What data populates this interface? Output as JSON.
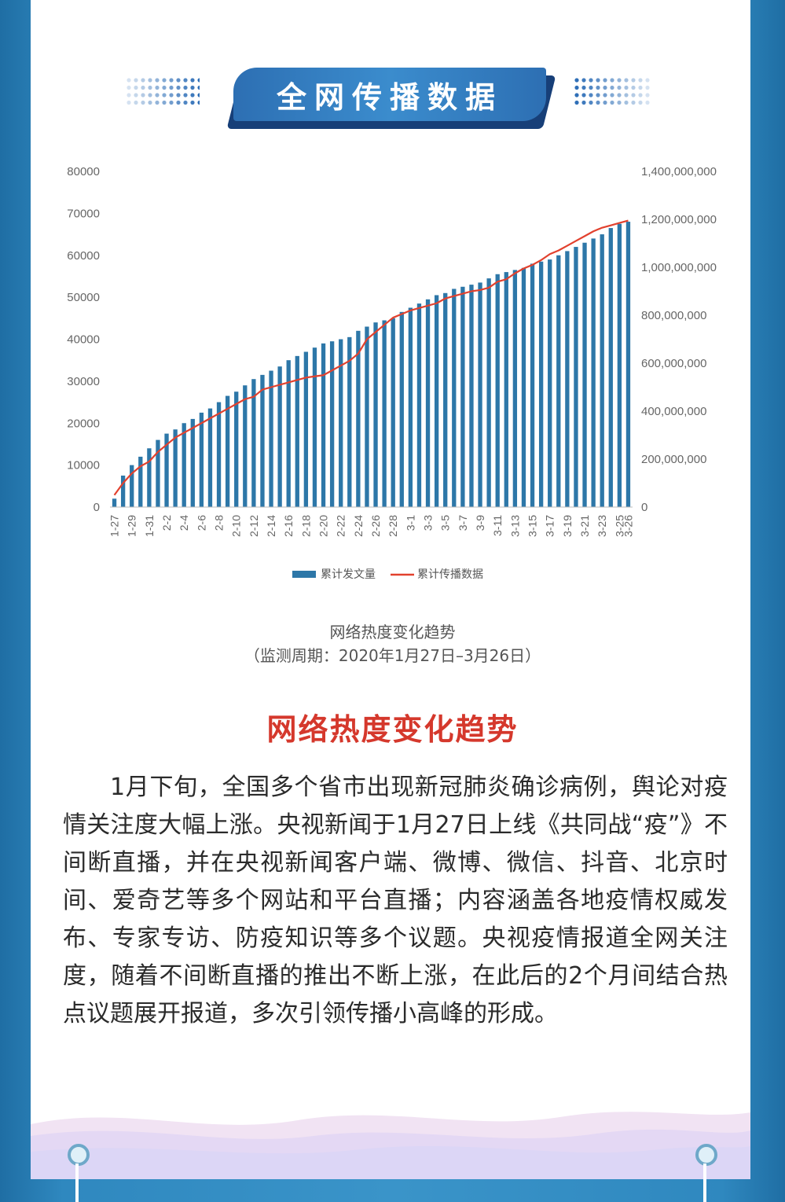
{
  "header": {
    "title": "全网传播数据"
  },
  "chart_data": {
    "type": "bar+line",
    "categories": [
      "1-27",
      "1-28",
      "1-29",
      "1-30",
      "1-31",
      "2-1",
      "2-2",
      "2-3",
      "2-4",
      "2-5",
      "2-6",
      "2-7",
      "2-8",
      "2-9",
      "2-10",
      "2-11",
      "2-12",
      "2-13",
      "2-14",
      "2-15",
      "2-16",
      "2-17",
      "2-18",
      "2-19",
      "2-20",
      "2-21",
      "2-22",
      "2-23",
      "2-24",
      "2-25",
      "2-26",
      "2-27",
      "2-28",
      "2-29",
      "3-1",
      "3-2",
      "3-3",
      "3-4",
      "3-5",
      "3-6",
      "3-7",
      "3-8",
      "3-9",
      "3-10",
      "3-11",
      "3-12",
      "3-13",
      "3-14",
      "3-15",
      "3-16",
      "3-17",
      "3-18",
      "3-19",
      "3-20",
      "3-21",
      "3-22",
      "3-23",
      "3-24",
      "3-25",
      "3-26"
    ],
    "tick_labels": [
      "1-27",
      "1-29",
      "1-31",
      "2-2",
      "2-4",
      "2-6",
      "2-8",
      "2-10",
      "2-12",
      "2-14",
      "2-16",
      "2-18",
      "2-20",
      "2-22",
      "2-24",
      "2-26",
      "2-28",
      "3-1",
      "3-3",
      "3-5",
      "3-7",
      "3-9",
      "3-11",
      "3-13",
      "3-15",
      "3-17",
      "3-19",
      "3-21",
      "3-23",
      "3-25",
      "3-26"
    ],
    "series": [
      {
        "name": "累计发文量",
        "kind": "bar",
        "axis": "left",
        "color": "#2d77a8",
        "values": [
          2000,
          7500,
          10000,
          12000,
          14000,
          16000,
          17500,
          18500,
          20000,
          21000,
          22500,
          23500,
          25000,
          26500,
          27500,
          29000,
          30500,
          31500,
          32500,
          33500,
          35000,
          36000,
          37000,
          38000,
          39000,
          39500,
          40000,
          40500,
          42000,
          43000,
          44000,
          44500,
          45000,
          46500,
          47500,
          48500,
          49500,
          50500,
          51000,
          52000,
          52500,
          53000,
          53500,
          54500,
          55500,
          56000,
          56500,
          57000,
          58000,
          58500,
          59000,
          60000,
          61000,
          62000,
          63000,
          64000,
          65000,
          66500,
          67500,
          68000
        ]
      },
      {
        "name": "累计传播数据",
        "kind": "line",
        "axis": "right",
        "color": "#e2412e",
        "values": [
          50000000,
          100000000,
          140000000,
          170000000,
          190000000,
          230000000,
          260000000,
          290000000,
          310000000,
          330000000,
          350000000,
          370000000,
          390000000,
          410000000,
          430000000,
          450000000,
          460000000,
          490000000,
          500000000,
          510000000,
          520000000,
          530000000,
          540000000,
          545000000,
          550000000,
          570000000,
          590000000,
          610000000,
          640000000,
          700000000,
          730000000,
          760000000,
          790000000,
          805000000,
          820000000,
          830000000,
          840000000,
          850000000,
          870000000,
          880000000,
          890000000,
          900000000,
          905000000,
          915000000,
          940000000,
          950000000,
          975000000,
          995000000,
          1010000000,
          1030000000,
          1055000000,
          1070000000,
          1090000000,
          1110000000,
          1130000000,
          1150000000,
          1165000000,
          1175000000,
          1185000000,
          1195000000
        ]
      }
    ],
    "y_left": {
      "ticks": [
        "80000",
        "70000",
        "60000",
        "50000",
        "40000",
        "30000",
        "20000",
        "10000",
        "0"
      ],
      "range": [
        0,
        80000
      ]
    },
    "y_right": {
      "ticks": [
        "1,400,000,000",
        "1,200,000,000",
        "1,000,000,000",
        "800,000,000",
        "600,000,000",
        "400,000,000",
        "200,000,000",
        "0"
      ],
      "range": [
        0,
        1400000000
      ]
    },
    "legend_position": "bottom",
    "grid": false
  },
  "caption": {
    "title": "网络热度变化趋势",
    "period": "（监测周期：2020年1月27日–3月26日）"
  },
  "article": {
    "heading": "网络热度变化趋势",
    "body": "1月下旬，全国多个省市出现新冠肺炎确诊病例，舆论对疫情关注度大幅上涨。央视新闻于1月27日上线《共同战“疫”》不间断直播，并在央视新闻客户端、微博、微信、抖音、北京时间、爱奇艺等多个网站和平台直播；内容涵盖各地疫情权威发布、专家专访、防疫知识等多个议题。央视疫情报道全网关注度，随着不间断直播的推出不断上涨，在此后的2个月间结合热点议题展开报道，多次引领传播小高峰的形成。"
  }
}
